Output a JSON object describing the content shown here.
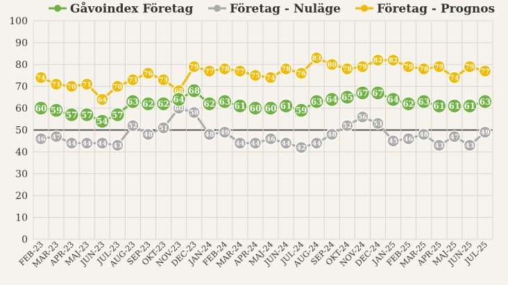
{
  "chart_data": {
    "type": "line",
    "title": "",
    "xlabel": "",
    "ylabel": "",
    "ylim": [
      0,
      100
    ],
    "yticks": [
      0,
      10,
      20,
      30,
      40,
      50,
      60,
      70,
      80,
      90,
      100
    ],
    "grid": true,
    "reference_line": 50,
    "legend_position": "top",
    "categories": [
      "FEB-23",
      "MAR-23",
      "APR-23",
      "MAJ-23",
      "JUN-23",
      "JUL-23",
      "AUG-23",
      "SEP-23",
      "OKT-23",
      "NOV-23",
      "DEC-23",
      "JAN-24",
      "FEB-24",
      "MAR-24",
      "APR-24",
      "MAJ-24",
      "JUN-24",
      "JUL-24",
      "AUG-24",
      "SEP-24",
      "OKT-24",
      "NOV-24",
      "DEC-24",
      "JAN-25",
      "FEB-25",
      "MAR-25",
      "APR-25",
      "MAJ-25",
      "JUN-25",
      "JUL-25"
    ],
    "series": [
      {
        "name": "Gåvoindex Företag",
        "color": "#6db33f",
        "values": [
          60,
          59,
          57,
          57,
          54,
          57,
          63,
          62,
          62,
          64,
          68,
          62,
          63,
          61,
          60,
          60,
          61,
          59,
          63,
          64,
          65,
          67,
          67,
          64,
          62,
          63,
          61,
          61,
          61,
          63
        ]
      },
      {
        "name": "Företag - Nuläge",
        "color": "#a9a9a9",
        "values": [
          46,
          47,
          44,
          44,
          44,
          43,
          52,
          48,
          51,
          60,
          58,
          48,
          49,
          44,
          44,
          46,
          44,
          42,
          44,
          48,
          52,
          56,
          53,
          45,
          46,
          48,
          43,
          47,
          43,
          49
        ]
      },
      {
        "name": "Företag - Prognos",
        "color": "#f5b800",
        "values": [
          74,
          71,
          70,
          71,
          64,
          70,
          73,
          76,
          73,
          68,
          79,
          77,
          78,
          77,
          75,
          74,
          78,
          76,
          83,
          80,
          78,
          79,
          82,
          82,
          79,
          78,
          79,
          74,
          79,
          77
        ]
      }
    ]
  }
}
